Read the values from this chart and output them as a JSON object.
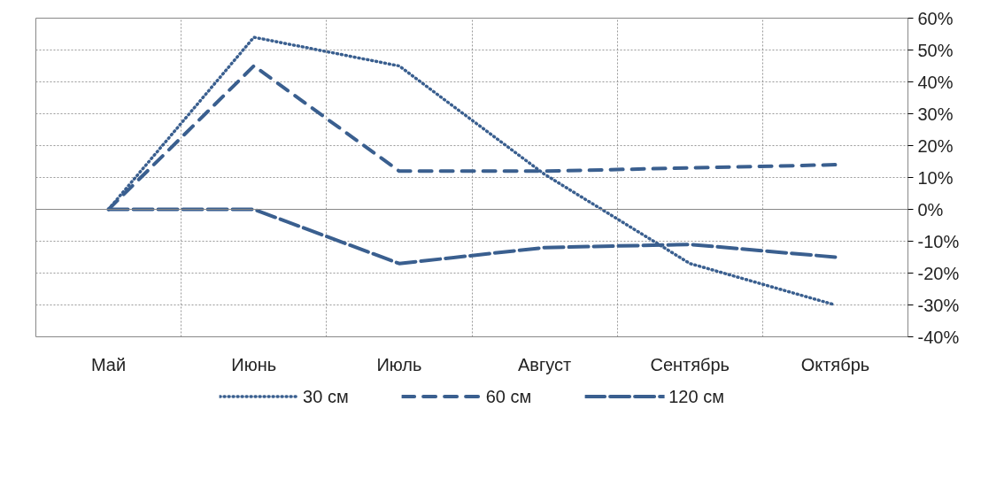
{
  "chart_data": {
    "type": "line",
    "categories": [
      "Май",
      "Июнь",
      "Июль",
      "Август",
      "Сентябрь",
      "Октябрь"
    ],
    "series": [
      {
        "name": "30 см",
        "color": "#3a5f8f",
        "line_style": "dotted",
        "values": [
          0,
          54,
          45,
          11,
          -17,
          -30
        ]
      },
      {
        "name": "60 см",
        "color": "#3a5f8f",
        "line_style": "dashed",
        "values": [
          0,
          45,
          12,
          12,
          13,
          14
        ]
      },
      {
        "name": "120 см",
        "color": "#3a5f8f",
        "line_style": "longdash",
        "values": [
          0,
          0,
          -17,
          -12,
          -11,
          -15
        ]
      }
    ],
    "ylim": [
      -40,
      60
    ],
    "yticks": [
      {
        "value": -40,
        "label": "-40%"
      },
      {
        "value": -30,
        "label": "-30%"
      },
      {
        "value": -20,
        "label": "-20%"
      },
      {
        "value": -10,
        "label": "-10%"
      },
      {
        "value": 0,
        "label": "0%"
      },
      {
        "value": 10,
        "label": "10%"
      },
      {
        "value": 20,
        "label": "20%"
      },
      {
        "value": 30,
        "label": "30%"
      },
      {
        "value": 40,
        "label": "40%"
      },
      {
        "value": 50,
        "label": "50%"
      },
      {
        "value": 60,
        "label": "60%"
      }
    ],
    "grid": true,
    "legend": "bottom",
    "marker": "none"
  }
}
